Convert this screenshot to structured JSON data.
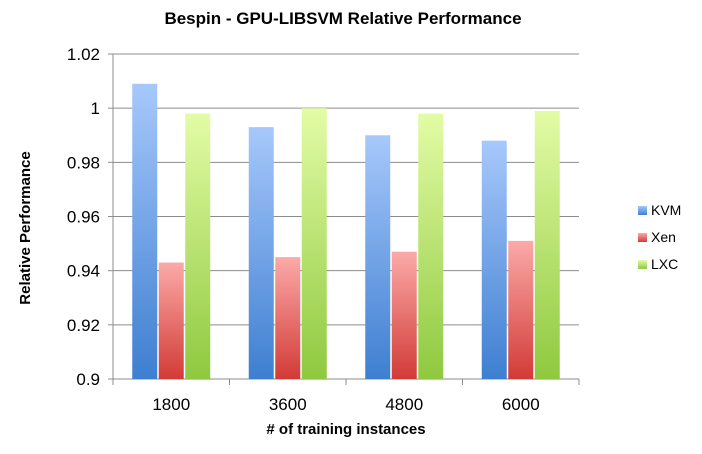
{
  "chart_data": {
    "type": "bar",
    "title": "Bespin - GPU-LIBSVM  Relative Performance",
    "xlabel": "# of training instances",
    "ylabel": "Relative Performance",
    "categories": [
      "1800",
      "3600",
      "4800",
      "6000"
    ],
    "series": [
      {
        "name": "KVM",
        "values": [
          1.009,
          0.993,
          0.99,
          0.988
        ],
        "color": "#4f81bd"
      },
      {
        "name": "Xen",
        "values": [
          0.943,
          0.945,
          0.947,
          0.951
        ],
        "color": "#c0504d"
      },
      {
        "name": "LXC",
        "values": [
          0.998,
          1.0,
          0.998,
          0.999
        ],
        "color": "#9bbb59"
      }
    ],
    "ylim": [
      0.9,
      1.02
    ],
    "yticks": [
      "0.9",
      "0.92",
      "0.94",
      "0.96",
      "0.98",
      "1",
      "1.02"
    ],
    "grid": true,
    "legend_position": "right"
  }
}
